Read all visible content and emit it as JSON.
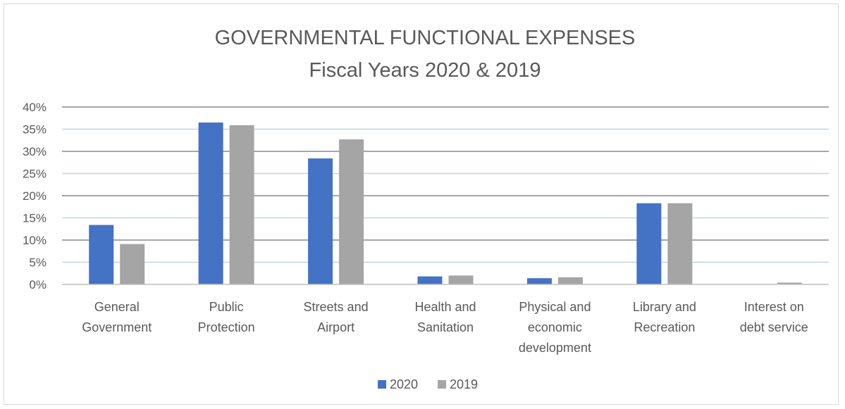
{
  "chart_data": {
    "type": "bar",
    "title": "GOVERNMENTAL FUNCTIONAL EXPENSES",
    "subtitle": "Fiscal Years 2020 & 2019",
    "xlabel": "",
    "ylabel": "",
    "categories": [
      [
        "General",
        "Government"
      ],
      [
        "Public",
        "Protection"
      ],
      [
        "Streets and",
        "Airport"
      ],
      [
        "Health and",
        "Sanitation"
      ],
      [
        "Physical and",
        "economic",
        "development"
      ],
      [
        "Library and",
        "Recreation"
      ],
      [
        "Interest on",
        "debt service"
      ]
    ],
    "series": [
      {
        "name": "2020",
        "color": "#4472C4",
        "values": [
          13.4,
          36.5,
          28.4,
          1.8,
          1.4,
          18.3,
          0.0
        ]
      },
      {
        "name": "2019",
        "color": "#A5A5A5",
        "values": [
          9.1,
          35.9,
          32.7,
          2.0,
          1.6,
          18.3,
          0.4
        ]
      }
    ],
    "ylim": [
      0,
      40
    ],
    "yticks": [
      0,
      5,
      10,
      15,
      20,
      25,
      30,
      35,
      40
    ],
    "ytick_labels": [
      "0%",
      "5%",
      "10%",
      "15%",
      "20%",
      "25%",
      "30%",
      "35%",
      "40%"
    ],
    "grid": true,
    "legend_position": "bottom"
  }
}
